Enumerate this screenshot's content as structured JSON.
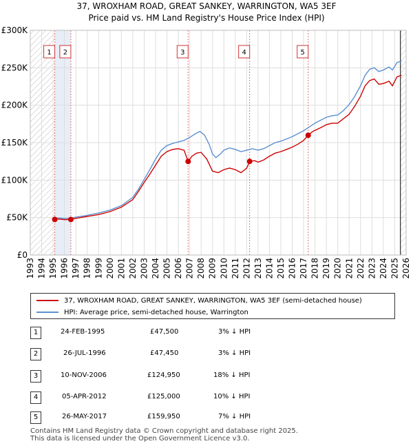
{
  "title_line1": "37, WROXHAM ROAD, GREAT SANKEY, WARRINGTON, WA5 3EF",
  "title_line2": "Price paid vs. HM Land Registry's House Price Index (HPI)",
  "chart_data": {
    "type": "line",
    "title": "37, WROXHAM ROAD, GREAT SANKEY, WARRINGTON, WA5 3EF — Price paid vs. HM Land Registry's House Price Index (HPI)",
    "xlabel": "",
    "ylabel": "",
    "xlim": [
      1993,
      2026
    ],
    "ylim": [
      0,
      300000
    ],
    "x_ticks": [
      1993,
      1994,
      1995,
      1996,
      1997,
      1998,
      1999,
      2000,
      2001,
      2002,
      2003,
      2004,
      2005,
      2006,
      2007,
      2008,
      2009,
      2010,
      2011,
      2012,
      2013,
      2014,
      2015,
      2016,
      2017,
      2018,
      2019,
      2020,
      2021,
      2022,
      2023,
      2024,
      2025,
      2026
    ],
    "y_ticks": [
      {
        "value": 0,
        "label": "£0"
      },
      {
        "value": 50000,
        "label": "£50K"
      },
      {
        "value": 100000,
        "label": "£100K"
      },
      {
        "value": 150000,
        "label": "£150K"
      },
      {
        "value": 200000,
        "label": "£200K"
      },
      {
        "value": 250000,
        "label": "£250K"
      },
      {
        "value": 300000,
        "label": "£300K"
      }
    ],
    "grid": true,
    "colors": {
      "property": "#cc0000",
      "hpi": "#5b8fd0",
      "hatch": "#bbbbbb",
      "band": "#e8eef8",
      "marker_line": "#e07070"
    },
    "series": [
      {
        "name": "37, WROXHAM ROAD, GREAT SANKEY, WARRINGTON, WA5 3EF (semi-detached house)",
        "color": "#cc0000",
        "points": [
          [
            1995.15,
            47500
          ],
          [
            1995.5,
            48000
          ],
          [
            1996.0,
            47200
          ],
          [
            1996.56,
            47450
          ],
          [
            1997.0,
            49000
          ],
          [
            1998.0,
            51500
          ],
          [
            1999.0,
            54000
          ],
          [
            2000.0,
            58000
          ],
          [
            2001.0,
            64000
          ],
          [
            2002.0,
            74000
          ],
          [
            2002.5,
            85000
          ],
          [
            2003.0,
            97000
          ],
          [
            2003.5,
            108000
          ],
          [
            2004.0,
            120000
          ],
          [
            2004.5,
            132000
          ],
          [
            2005.0,
            138000
          ],
          [
            2005.5,
            141000
          ],
          [
            2006.0,
            142000
          ],
          [
            2006.5,
            140000
          ],
          [
            2006.86,
            124950
          ],
          [
            2007.2,
            132000
          ],
          [
            2007.6,
            136000
          ],
          [
            2008.0,
            137000
          ],
          [
            2008.5,
            128000
          ],
          [
            2009.0,
            112000
          ],
          [
            2009.5,
            110000
          ],
          [
            2010.0,
            114000
          ],
          [
            2010.5,
            116000
          ],
          [
            2011.0,
            114000
          ],
          [
            2011.5,
            110000
          ],
          [
            2012.0,
            116000
          ],
          [
            2012.26,
            125000
          ],
          [
            2012.7,
            126000
          ],
          [
            2013.0,
            124000
          ],
          [
            2013.5,
            127000
          ],
          [
            2014.0,
            132000
          ],
          [
            2014.5,
            136000
          ],
          [
            2015.0,
            138000
          ],
          [
            2015.5,
            141000
          ],
          [
            2016.0,
            144000
          ],
          [
            2016.5,
            148000
          ],
          [
            2017.0,
            153000
          ],
          [
            2017.4,
            159950
          ],
          [
            2017.8,
            165000
          ],
          [
            2018.5,
            170000
          ],
          [
            2019.0,
            174000
          ],
          [
            2019.5,
            176000
          ],
          [
            2020.0,
            176000
          ],
          [
            2020.5,
            182000
          ],
          [
            2021.0,
            188000
          ],
          [
            2021.5,
            199000
          ],
          [
            2022.0,
            212000
          ],
          [
            2022.4,
            226000
          ],
          [
            2022.8,
            233000
          ],
          [
            2023.2,
            235000
          ],
          [
            2023.6,
            228000
          ],
          [
            2024.0,
            229000
          ],
          [
            2024.5,
            232000
          ],
          [
            2024.8,
            226000
          ],
          [
            2025.2,
            238000
          ],
          [
            2025.6,
            240000
          ]
        ]
      },
      {
        "name": "HPI: Average price, semi-detached house, Warrington",
        "color": "#5b8fd0",
        "points": [
          [
            1995.0,
            49000
          ],
          [
            1995.5,
            49500
          ],
          [
            1996.0,
            48800
          ],
          [
            1996.5,
            49000
          ],
          [
            1997.0,
            50500
          ],
          [
            1998.0,
            53000
          ],
          [
            1999.0,
            56000
          ],
          [
            2000.0,
            60000
          ],
          [
            2001.0,
            66000
          ],
          [
            2002.0,
            77000
          ],
          [
            2002.5,
            88000
          ],
          [
            2003.0,
            101000
          ],
          [
            2003.5,
            114000
          ],
          [
            2004.0,
            128000
          ],
          [
            2004.5,
            140000
          ],
          [
            2005.0,
            146000
          ],
          [
            2005.5,
            149000
          ],
          [
            2006.0,
            151000
          ],
          [
            2006.5,
            153000
          ],
          [
            2007.0,
            157000
          ],
          [
            2007.5,
            162000
          ],
          [
            2007.9,
            165000
          ],
          [
            2008.3,
            160000
          ],
          [
            2008.7,
            148000
          ],
          [
            2009.0,
            135000
          ],
          [
            2009.3,
            130000
          ],
          [
            2009.7,
            135000
          ],
          [
            2010.0,
            140000
          ],
          [
            2010.5,
            143000
          ],
          [
            2011.0,
            141000
          ],
          [
            2011.5,
            138000
          ],
          [
            2012.0,
            140000
          ],
          [
            2012.5,
            142000
          ],
          [
            2013.0,
            140000
          ],
          [
            2013.5,
            142000
          ],
          [
            2014.0,
            146000
          ],
          [
            2014.5,
            150000
          ],
          [
            2015.0,
            152000
          ],
          [
            2015.5,
            155000
          ],
          [
            2016.0,
            158000
          ],
          [
            2016.5,
            162000
          ],
          [
            2017.0,
            166000
          ],
          [
            2017.5,
            171000
          ],
          [
            2018.0,
            176000
          ],
          [
            2018.5,
            180000
          ],
          [
            2019.0,
            184000
          ],
          [
            2019.5,
            186000
          ],
          [
            2020.0,
            187000
          ],
          [
            2020.5,
            193000
          ],
          [
            2021.0,
            201000
          ],
          [
            2021.5,
            212000
          ],
          [
            2022.0,
            226000
          ],
          [
            2022.4,
            240000
          ],
          [
            2022.8,
            248000
          ],
          [
            2023.2,
            250000
          ],
          [
            2023.6,
            245000
          ],
          [
            2024.0,
            247000
          ],
          [
            2024.5,
            251000
          ],
          [
            2024.8,
            247000
          ],
          [
            2025.2,
            257000
          ],
          [
            2025.6,
            259000
          ]
        ]
      }
    ],
    "sale_markers": [
      {
        "label": "1",
        "x": 1995.15,
        "y": 47500
      },
      {
        "label": "2",
        "x": 1996.56,
        "y": 47450
      },
      {
        "label": "3",
        "x": 2006.86,
        "y": 124950
      },
      {
        "label": "4",
        "x": 2012.26,
        "y": 125000
      },
      {
        "label": "5",
        "x": 2017.4,
        "y": 159950
      }
    ],
    "shaded_before": 1995.15,
    "shaded_band": [
      1995.15,
      1996.56
    ],
    "shaded_after": 2025.5
  },
  "legend": {
    "property_label": "37, WROXHAM ROAD, GREAT SANKEY, WARRINGTON, WA5 3EF (semi-detached house)",
    "hpi_label": "HPI: Average price, semi-detached house, Warrington"
  },
  "transactions": [
    {
      "num": "1",
      "date": "24-FEB-1995",
      "price": "£47,500",
      "hpi": "3% ↓ HPI"
    },
    {
      "num": "2",
      "date": "26-JUL-1996",
      "price": "£47,450",
      "hpi": "3% ↓ HPI"
    },
    {
      "num": "3",
      "date": "10-NOV-2006",
      "price": "£124,950",
      "hpi": "18% ↓ HPI"
    },
    {
      "num": "4",
      "date": "05-APR-2012",
      "price": "£125,000",
      "hpi": "10% ↓ HPI"
    },
    {
      "num": "5",
      "date": "26-MAY-2017",
      "price": "£159,950",
      "hpi": "7% ↓ HPI"
    }
  ],
  "footer": {
    "line1": "Contains HM Land Registry data © Crown copyright and database right 2025.",
    "line2": "This data is licensed under the Open Government Licence v3.0."
  }
}
